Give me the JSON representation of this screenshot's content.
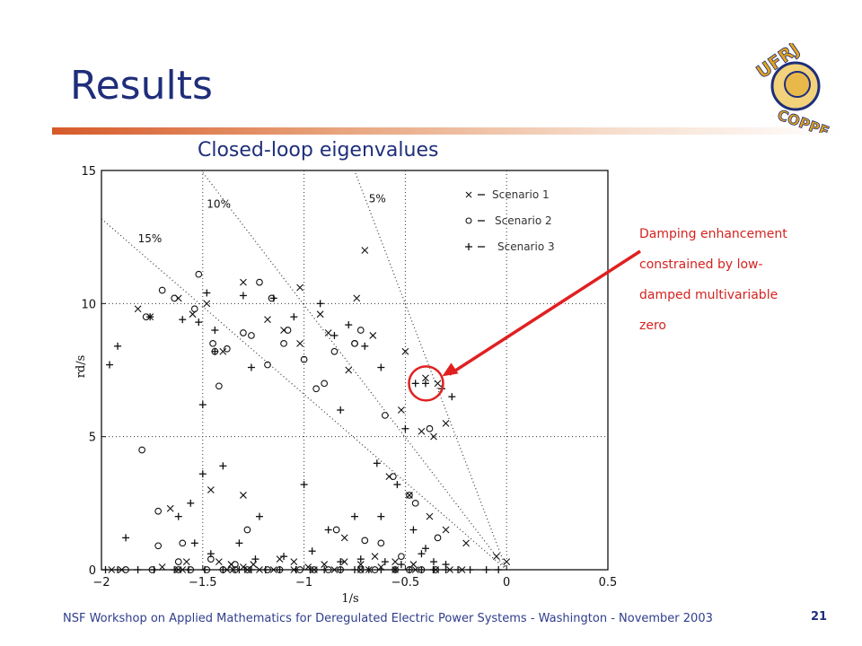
{
  "slide": {
    "title": "Results",
    "footer": "NSF Workshop on Applied Mathematics for Deregulated Electric Power Systems - Washington - November 2003",
    "page_number": "21",
    "logo_text": "UFRJ COPPE"
  },
  "annotation": {
    "lines": [
      "Damping enhancement",
      "constrained by low-",
      "damped multivariable",
      "zero"
    ]
  },
  "colors": {
    "title": "#1f2e7a",
    "annotation": "#d4231f",
    "rule": "#d65a2a"
  },
  "chart_data": {
    "type": "scatter",
    "title": "Closed-loop eigenvalues",
    "xlabel": "1/s",
    "ylabel": "rd/s",
    "xlim": [
      -2,
      0.5
    ],
    "ylim": [
      0,
      15
    ],
    "xticks": [
      -2,
      -1.5,
      -1,
      -0.5,
      0,
      0.5
    ],
    "xtick_labels": [
      "−2",
      "−1.5",
      "−1",
      "−0.5",
      "0",
      "0.5"
    ],
    "yticks": [
      0,
      5,
      10,
      15
    ],
    "ytick_labels": [
      "0",
      "5",
      "10",
      "15"
    ],
    "grid": true,
    "legend_position": "top-right",
    "damping_lines": [
      {
        "label": "15%",
        "zeta": 0.15
      },
      {
        "label": "10%",
        "zeta": 0.1
      },
      {
        "label": "5%",
        "zeta": 0.05
      }
    ],
    "series": [
      {
        "name": "Scenario 1",
        "marker": "x",
        "x": [
          -1.95,
          -1.9,
          -1.62,
          -1.6,
          -1.38,
          -1.35,
          -1.28,
          -1.22,
          -1.15,
          -1.05,
          -0.95,
          -0.85,
          -0.72,
          -0.68,
          -0.55,
          -0.45,
          -0.35,
          -0.28,
          -0.22,
          -1.7,
          -1.58,
          -1.42,
          -1.36,
          -1.3,
          -1.25,
          -1.12,
          -1.05,
          -0.98,
          -0.9,
          -0.8,
          -0.72,
          -0.62,
          -0.55,
          -0.46,
          -1.82,
          -1.76,
          -1.55,
          -1.4,
          -1.18,
          -1.1,
          -1.02,
          -0.88,
          -0.78,
          -0.66,
          -0.5,
          -0.4,
          -0.34,
          -0.3,
          -1.62,
          -1.48,
          -1.3,
          -1.02,
          -0.92,
          -0.74,
          -0.7,
          -0.52,
          -0.42,
          -0.36,
          -1.66,
          -1.46,
          -1.3,
          -0.8,
          -0.65,
          -0.58,
          -0.48,
          -0.38,
          -0.3,
          -0.2,
          -0.05,
          0.0
        ],
        "y": [
          0,
          0,
          0,
          0,
          0,
          0,
          0,
          0,
          0,
          0,
          0,
          0,
          0,
          0,
          0,
          0,
          0,
          0,
          0,
          0.1,
          0.3,
          0.3,
          0.2,
          0.1,
          0.2,
          0.4,
          0.3,
          0.1,
          0.2,
          0.3,
          0.2,
          0.1,
          0.3,
          0.2,
          9.8,
          9.5,
          9.6,
          8.2,
          9.4,
          9.0,
          8.5,
          8.9,
          7.5,
          8.8,
          8.2,
          7.2,
          7.0,
          5.5,
          10.2,
          10.0,
          10.8,
          10.6,
          9.6,
          10.2,
          12.0,
          6.0,
          5.2,
          5.0,
          2.3,
          3.0,
          2.8,
          1.2,
          0.5,
          3.5,
          2.8,
          2.0,
          1.5,
          1.0,
          0.5,
          0.3
        ]
      },
      {
        "name": "Scenario 2",
        "marker": "o",
        "x": [
          -1.88,
          -1.75,
          -1.62,
          -1.56,
          -1.48,
          -1.4,
          -1.34,
          -1.28,
          -1.18,
          -1.12,
          -1.02,
          -0.95,
          -0.88,
          -0.82,
          -0.72,
          -0.65,
          -0.55,
          -0.48,
          -0.42,
          -0.35,
          -1.8,
          -1.72,
          -1.6,
          -1.54,
          -1.45,
          -1.42,
          -1.3,
          -1.22,
          -1.16,
          -1.1,
          -1.0,
          -0.94,
          -0.85,
          -0.75,
          -0.72,
          -0.56,
          -0.48,
          -0.38,
          -1.78,
          -1.7,
          -1.64,
          -1.52,
          -1.44,
          -1.38,
          -1.26,
          -1.18,
          -1.08,
          -0.9,
          -0.75,
          -0.6,
          -0.45,
          -0.34,
          -1.72,
          -1.62,
          -1.46,
          -1.34,
          -1.28,
          -0.84,
          -0.7,
          -0.62,
          -0.52
        ],
        "y": [
          0,
          0,
          0,
          0,
          0,
          0,
          0,
          0,
          0,
          0,
          0,
          0,
          0,
          0,
          0,
          0,
          0,
          0,
          0,
          0,
          4.5,
          2.2,
          1.0,
          9.8,
          8.5,
          6.9,
          8.9,
          10.8,
          10.2,
          8.5,
          7.9,
          6.8,
          8.2,
          8.5,
          9.0,
          3.5,
          2.8,
          5.3,
          9.5,
          10.5,
          10.2,
          11.1,
          8.2,
          8.3,
          8.8,
          7.7,
          9.0,
          7.0,
          8.5,
          5.8,
          2.5,
          1.2,
          0.9,
          0.3,
          0.4,
          0.2,
          1.5,
          1.5,
          1.1,
          1.0,
          0.5
        ]
      },
      {
        "name": "Scenario 3",
        "marker": "+",
        "x": [
          -1.98,
          -1.92,
          -1.82,
          -1.74,
          -1.64,
          -1.57,
          -1.49,
          -1.4,
          -1.32,
          -1.26,
          -1.19,
          -1.12,
          -1.04,
          -0.97,
          -0.9,
          -0.82,
          -0.75,
          -0.68,
          -0.62,
          -0.55,
          -0.48,
          -0.42,
          -0.36,
          -0.3,
          -0.24,
          -0.18,
          -0.1,
          -0.04,
          -1.96,
          -1.92,
          -1.76,
          -1.6,
          -1.44,
          -1.52,
          -1.48,
          -1.3,
          -1.15,
          -1.05,
          -0.92,
          -0.85,
          -0.78,
          -0.7,
          -0.62,
          -0.5,
          -0.45,
          -0.4,
          -0.32,
          -0.27,
          -1.62,
          -1.56,
          -1.5,
          -1.4,
          -1.22,
          -1.0,
          -0.88,
          -0.75,
          -0.62,
          -0.46,
          -0.4,
          -1.88,
          -1.54,
          -1.46,
          -1.32,
          -1.24,
          -1.1,
          -0.96,
          -0.82,
          -0.72,
          -0.6,
          -0.52,
          -0.42,
          -0.36,
          -0.3,
          -1.5,
          -1.44,
          -1.26,
          -0.82,
          -0.64,
          -0.54
        ],
        "y": [
          0,
          0,
          0,
          0,
          0,
          0,
          0,
          0,
          0,
          0,
          0,
          0,
          0,
          0,
          0,
          0,
          0,
          0,
          0,
          0,
          0,
          0,
          0,
          0,
          0,
          0,
          0,
          0,
          7.7,
          8.4,
          9.5,
          9.4,
          9.0,
          9.3,
          10.4,
          10.3,
          10.2,
          9.5,
          10.0,
          8.8,
          9.2,
          8.4,
          7.6,
          5.3,
          7.0,
          7.0,
          6.8,
          6.5,
          2.0,
          2.5,
          3.6,
          3.9,
          2.0,
          3.2,
          1.5,
          2.0,
          2.0,
          1.5,
          0.8,
          1.2,
          1.0,
          0.6,
          1.0,
          0.4,
          0.5,
          0.7,
          0.3,
          0.4,
          0.3,
          0.2,
          0.6,
          0.3,
          0.2,
          6.2,
          8.2,
          7.6,
          6.0,
          4.0,
          3.2
        ]
      }
    ],
    "annotated_point": {
      "x": -0.38,
      "y": 7.0
    }
  }
}
